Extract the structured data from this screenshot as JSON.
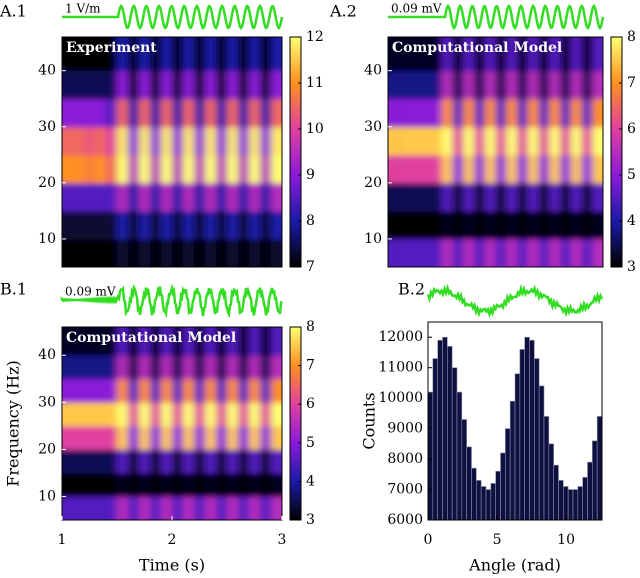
{
  "chart_data": [
    {
      "type": "heatmap",
      "panel_label": "A.1",
      "overlay": "Experiment",
      "stimulus_label": "1 V/m",
      "xlim": [
        1,
        3
      ],
      "ylim": [
        5,
        46
      ],
      "yticks": [
        10,
        20,
        30,
        40
      ],
      "clim": [
        7,
        12
      ],
      "cticks": [
        7,
        8,
        9,
        10,
        11,
        12
      ],
      "colormap": [
        "#000000",
        "#1a1aa8",
        "#8a1ad8",
        "#e040a0",
        "#ff9020",
        "#ffff70"
      ],
      "x": [
        1.05,
        1.15,
        1.25,
        1.35,
        1.45,
        1.55,
        1.65,
        1.75,
        1.85,
        1.95,
        2.05,
        2.15,
        2.25,
        2.35,
        2.45,
        2.55,
        2.65,
        2.75,
        2.85,
        2.95
      ],
      "y": [
        7.5,
        12.5,
        17.5,
        22.5,
        27.5,
        32.5,
        37.5,
        42.5
      ],
      "z": [
        [
          7,
          7,
          7,
          7,
          7,
          7.3,
          7,
          7.3,
          7,
          7.3,
          7,
          7.3,
          7,
          7.3,
          7,
          7.3,
          7,
          7.3,
          7,
          7.3
        ],
        [
          7.3,
          7.3,
          7.3,
          7.3,
          7.3,
          8,
          7.3,
          8,
          7.3,
          8,
          7.3,
          8,
          7.3,
          8,
          7.3,
          8,
          7.3,
          8,
          7.3,
          8
        ],
        [
          8.5,
          8.5,
          8.5,
          8.5,
          8.5,
          9.5,
          8,
          9.5,
          8,
          9.5,
          8,
          9.5,
          8,
          9.5,
          8,
          9.5,
          8,
          9.5,
          8,
          9.5
        ],
        [
          11,
          11,
          10.8,
          11,
          10.5,
          12,
          9.5,
          12,
          9.5,
          12,
          9.5,
          12,
          9.5,
          12,
          9.5,
          12,
          9.5,
          12,
          9.5,
          12
        ],
        [
          10.5,
          10.5,
          10.3,
          10.5,
          10,
          11.8,
          9,
          11.8,
          9,
          11.8,
          9,
          11.8,
          9,
          11.8,
          9,
          11.8,
          9,
          11.8,
          9,
          11.8
        ],
        [
          9,
          9,
          9,
          9,
          8.5,
          10.5,
          8,
          10.5,
          8,
          10.5,
          8,
          10.5,
          8,
          10.5,
          8,
          10.5,
          8,
          10.5,
          8,
          10.5
        ],
        [
          7.5,
          7.5,
          7.5,
          7.5,
          7.5,
          9,
          7.3,
          9,
          7.3,
          9,
          7.3,
          9,
          7.3,
          9,
          7.3,
          9,
          7.3,
          9,
          7.3,
          9
        ],
        [
          7,
          7,
          7,
          7,
          7,
          8,
          7,
          8,
          7,
          8,
          7,
          8,
          7,
          8,
          7,
          8,
          7,
          8,
          7,
          8
        ]
      ]
    },
    {
      "type": "heatmap",
      "panel_label": "A.2",
      "overlay": "Computational Model",
      "stimulus_label": "0.09 mV",
      "xlim": [
        1,
        3
      ],
      "ylim": [
        5,
        46
      ],
      "yticks": [
        10,
        20,
        30,
        40
      ],
      "clim": [
        3,
        8
      ],
      "cticks": [
        3,
        4,
        5,
        6,
        7,
        8
      ],
      "colormap": [
        "#000000",
        "#1a1aa8",
        "#8a1ad8",
        "#e040a0",
        "#ff9020",
        "#ffff70"
      ],
      "x": [
        1.05,
        1.15,
        1.25,
        1.35,
        1.45,
        1.55,
        1.65,
        1.75,
        1.85,
        1.95,
        2.05,
        2.15,
        2.25,
        2.35,
        2.45,
        2.55,
        2.65,
        2.75,
        2.85,
        2.95
      ],
      "y": [
        7.5,
        12.5,
        17.5,
        22.5,
        27.5,
        32.5,
        37.5,
        42.5
      ],
      "z": [
        [
          4.5,
          4.5,
          4.5,
          4.5,
          4.5,
          5.5,
          4.5,
          5.5,
          4.5,
          5.5,
          4.5,
          5.5,
          4.5,
          5.5,
          4.5,
          5.5,
          4.5,
          5.5,
          4.5,
          5.5
        ],
        [
          3,
          3,
          3,
          3,
          3,
          3.2,
          3,
          3.2,
          3,
          3.2,
          3,
          3.2,
          3,
          3.2,
          3,
          3.2,
          3,
          3.2,
          3,
          3.2
        ],
        [
          3.5,
          3.5,
          3.5,
          3.5,
          3.5,
          4.5,
          3.3,
          4.5,
          3.3,
          4.5,
          3.3,
          4.5,
          3.3,
          4.5,
          3.3,
          4.5,
          3.3,
          4.5,
          3.3,
          4.5
        ],
        [
          6,
          6,
          6,
          6,
          6,
          7.5,
          5,
          7.5,
          5,
          7.5,
          5,
          7.5,
          5,
          7.5,
          5,
          7.5,
          5,
          7.5,
          5,
          7.5
        ],
        [
          7.5,
          7.5,
          7.5,
          7.5,
          7.5,
          8,
          6,
          8,
          6,
          8,
          6,
          8,
          6,
          8,
          6,
          8,
          6,
          8,
          6,
          8
        ],
        [
          5,
          5,
          5,
          5,
          5,
          7,
          4.5,
          7,
          4.5,
          7,
          4.5,
          7,
          4.5,
          7,
          4.5,
          7,
          4.5,
          7,
          4.5,
          7
        ],
        [
          3.8,
          3.8,
          3.8,
          3.8,
          3.8,
          5.5,
          3.5,
          5.5,
          3.5,
          5.5,
          3.5,
          5.5,
          3.5,
          5.5,
          3.5,
          5.5,
          3.5,
          5.5,
          3.5,
          5.5
        ],
        [
          3.2,
          3.2,
          3.2,
          3.2,
          3.2,
          4.5,
          3.2,
          4.5,
          3.2,
          4.5,
          3.2,
          4.5,
          3.2,
          4.5,
          3.2,
          4.5,
          3.2,
          4.5,
          3.2,
          4.5
        ]
      ]
    },
    {
      "type": "heatmap",
      "panel_label": "B.1",
      "overlay": "Computational Model",
      "stimulus_label": "0.09 mV",
      "x_label": "Time (s)",
      "y_label": "Frequency (Hz)",
      "xlim": [
        1,
        3
      ],
      "xticks": [
        1,
        2,
        3
      ],
      "ylim": [
        5,
        46
      ],
      "yticks": [
        10,
        20,
        30,
        40
      ],
      "clim": [
        3,
        8
      ],
      "cticks": [
        3,
        4,
        5,
        6,
        7,
        8
      ],
      "colormap": [
        "#000000",
        "#1a1aa8",
        "#8a1ad8",
        "#e040a0",
        "#ff9020",
        "#ffff70"
      ],
      "x": [
        1.05,
        1.15,
        1.25,
        1.35,
        1.45,
        1.55,
        1.65,
        1.75,
        1.85,
        1.95,
        2.05,
        2.15,
        2.25,
        2.35,
        2.45,
        2.55,
        2.65,
        2.75,
        2.85,
        2.95
      ],
      "y": [
        7.5,
        12.5,
        17.5,
        22.5,
        27.5,
        32.5,
        37.5,
        42.5
      ],
      "z": [
        [
          4.5,
          4.5,
          4.5,
          4.5,
          4.5,
          5.5,
          4.5,
          5.5,
          4.5,
          5.5,
          4.5,
          5.5,
          4.5,
          5.5,
          4.5,
          5.5,
          4.5,
          5.5,
          4.5,
          5.5
        ],
        [
          3,
          3,
          3,
          3,
          3,
          3.2,
          3,
          3.2,
          3,
          3.2,
          3,
          3.2,
          3,
          3.2,
          3,
          3.2,
          3,
          3.2,
          3,
          3.2
        ],
        [
          3.5,
          3.5,
          3.5,
          3.5,
          3.5,
          4.5,
          3.3,
          4.5,
          3.3,
          4.5,
          3.3,
          4.5,
          3.3,
          4.5,
          3.3,
          4.5,
          3.3,
          4.5,
          3.3,
          4.5
        ],
        [
          6,
          6,
          6,
          6,
          6,
          7.5,
          5,
          7.5,
          5,
          7.5,
          5,
          7.5,
          5,
          7.5,
          5,
          7.5,
          5,
          7.5,
          5,
          7.5
        ],
        [
          7.5,
          7.5,
          7.5,
          7.5,
          7.5,
          8,
          6,
          8,
          6,
          8,
          6,
          8,
          6,
          8,
          6,
          8,
          6,
          8,
          6,
          8
        ],
        [
          5,
          5,
          5,
          5,
          5,
          7,
          4.5,
          7,
          4.5,
          7,
          4.5,
          7,
          4.5,
          7,
          4.5,
          7,
          4.5,
          7,
          4.5,
          7
        ],
        [
          3.8,
          3.8,
          3.8,
          3.8,
          3.8,
          5.5,
          3.5,
          5.5,
          3.5,
          5.5,
          3.5,
          5.5,
          3.5,
          5.5,
          3.5,
          5.5,
          3.5,
          5.5,
          3.5,
          5.5
        ],
        [
          3.2,
          3.2,
          3.2,
          3.2,
          3.2,
          4.5,
          3.2,
          4.5,
          3.2,
          4.5,
          3.2,
          4.5,
          3.2,
          4.5,
          3.2,
          4.5,
          3.2,
          4.5,
          3.2,
          4.5
        ]
      ]
    },
    {
      "type": "histogram",
      "panel_label": "B.2",
      "x_label": "Angle (rad)",
      "y_label": "Counts",
      "color": "#101040",
      "xlim": [
        0,
        12.6
      ],
      "xticks": [
        0,
        5,
        10
      ],
      "ylim": [
        6000,
        12500
      ],
      "yticks": [
        6000,
        7000,
        8000,
        9000,
        10000,
        11000,
        12000
      ],
      "bins": [
        0,
        0.35,
        0.7,
        1.05,
        1.4,
        1.75,
        2.1,
        2.45,
        2.8,
        3.15,
        3.5,
        3.85,
        4.2,
        4.55,
        4.9,
        5.25,
        5.6,
        5.95,
        6.3,
        6.65,
        7,
        7.35,
        7.7,
        8.05,
        8.4,
        8.75,
        9.1,
        9.45,
        9.8,
        10.15,
        10.5,
        10.85,
        11.2,
        11.55,
        11.9,
        12.25,
        12.6
      ],
      "values": [
        10200,
        11300,
        11900,
        12000,
        11700,
        11000,
        10200,
        9300,
        8400,
        7700,
        7300,
        7100,
        7000,
        7200,
        7600,
        8200,
        9000,
        9900,
        10800,
        11600,
        12000,
        11900,
        11300,
        10400,
        9400,
        8500,
        7800,
        7300,
        7100,
        7000,
        7000,
        7100,
        7400,
        7900,
        8600,
        9400
      ]
    }
  ]
}
